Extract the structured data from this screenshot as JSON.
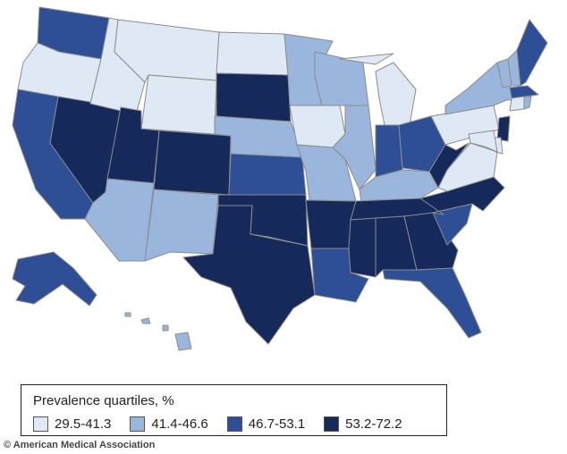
{
  "legend": {
    "title": "Prevalence quartiles, %",
    "items": [
      {
        "label": "29.5-41.3",
        "color": "#dfe8f5"
      },
      {
        "label": "41.4-46.6",
        "color": "#9ab6dd"
      },
      {
        "label": "46.7-53.1",
        "color": "#2e4e96"
      },
      {
        "label": "53.2-72.2",
        "color": "#15295a"
      }
    ]
  },
  "copyright": "© American Medical Association",
  "states": {
    "WA": 2,
    "OR": 0,
    "CA": 2,
    "NV": 3,
    "ID": 0,
    "MT": 0,
    "WY": 0,
    "UT": 3,
    "AZ": 1,
    "CO": 3,
    "NM": 1,
    "ND": 0,
    "SD": 3,
    "NE": 1,
    "KS": 2,
    "OK": 3,
    "TX": 3,
    "MN": 1,
    "IA": 0,
    "MO": 1,
    "AR": 3,
    "LA": 2,
    "WI": 1,
    "IL": 1,
    "MI": 0,
    "IN": 2,
    "OH": 2,
    "KY": 1,
    "TN": 3,
    "MS": 3,
    "AL": 3,
    "GA": 3,
    "FL": 2,
    "SC": 2,
    "NC": 3,
    "VA": 0,
    "WV": 3,
    "PA": 0,
    "NY": 1,
    "VT": 1,
    "NH": 1,
    "ME": 2,
    "MA": 2,
    "CT": 0,
    "RI": 1,
    "NJ": 3,
    "DE": 0,
    "MD": 0,
    "AK": 2,
    "HI": 1
  }
}
